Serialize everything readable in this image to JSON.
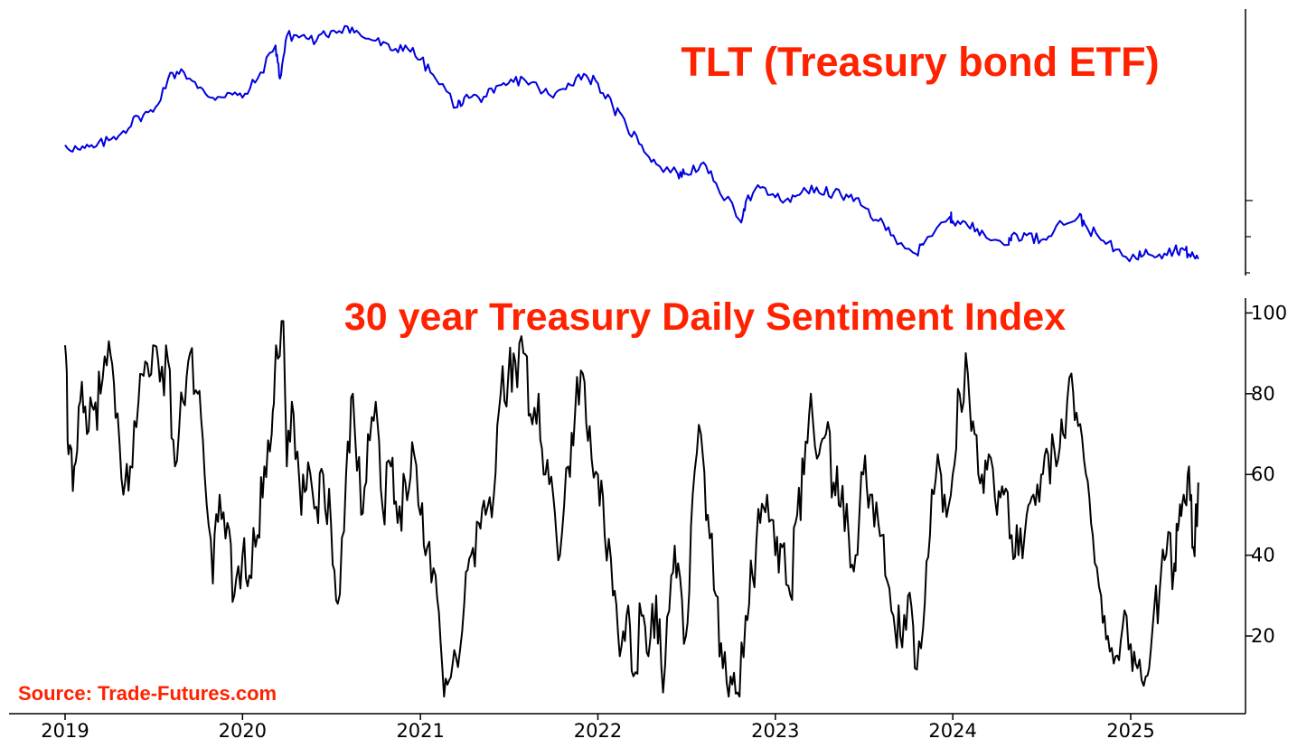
{
  "colors": {
    "title": "#ff2200",
    "tlt_line": "#0000dd",
    "dsi_line": "#000000",
    "axis": "#000000",
    "background": "#ffffff"
  },
  "chart_data": [
    {
      "type": "line",
      "title": "TLT (Treasury bond ETF)",
      "grid": false,
      "x_range": [
        "2019-01-01",
        "2025-05-31"
      ],
      "y_scale": "relative price (no tick labels shown)",
      "series": [
        {
          "color": "#0000dd",
          "x": [
            "2019-01-01",
            "2019-02-01",
            "2019-03-01",
            "2019-04-01",
            "2019-05-01",
            "2019-06-01",
            "2019-07-01",
            "2019-08-01",
            "2019-08-28",
            "2019-10-01",
            "2019-11-01",
            "2019-12-01",
            "2020-01-01",
            "2020-02-01",
            "2020-03-09",
            "2020-03-18",
            "2020-04-01",
            "2020-05-01",
            "2020-06-01",
            "2020-07-01",
            "2020-08-04",
            "2020-09-01",
            "2020-10-01",
            "2020-11-01",
            "2020-12-01",
            "2021-01-01",
            "2021-02-01",
            "2021-03-18",
            "2021-04-01",
            "2021-05-01",
            "2021-06-01",
            "2021-07-01",
            "2021-08-01",
            "2021-09-01",
            "2021-10-01",
            "2021-11-01",
            "2021-12-03",
            "2022-01-01",
            "2022-02-01",
            "2022-03-01",
            "2022-04-01",
            "2022-05-01",
            "2022-06-14",
            "2022-07-01",
            "2022-08-01",
            "2022-09-01",
            "2022-10-21",
            "2022-11-01",
            "2022-12-01",
            "2023-01-01",
            "2023-02-01",
            "2023-03-01",
            "2023-04-01",
            "2023-05-01",
            "2023-06-01",
            "2023-07-01",
            "2023-08-01",
            "2023-09-01",
            "2023-10-19",
            "2023-11-01",
            "2023-12-27",
            "2024-01-01",
            "2024-02-01",
            "2024-03-01",
            "2024-04-25",
            "2024-05-01",
            "2024-06-01",
            "2024-07-01",
            "2024-08-01",
            "2024-09-16",
            "2024-10-01",
            "2024-11-01",
            "2024-12-01",
            "2025-01-13",
            "2025-02-01",
            "2025-03-01",
            "2025-04-01",
            "2025-04-20",
            "2025-05-01",
            "2025-05-20"
          ],
          "values": [
            100,
            99,
            99.5,
            101,
            103,
            106,
            107,
            114,
            116,
            112,
            110,
            111,
            110,
            114,
            121,
            114,
            123,
            123,
            122,
            124,
            125,
            123,
            122,
            120,
            121,
            118,
            114,
            108,
            110,
            110,
            111,
            113,
            114,
            112,
            110,
            113,
            115,
            113,
            108,
            104,
            100,
            96,
            94,
            94,
            96,
            92,
            84,
            88,
            91,
            89,
            88,
            91,
            90,
            90,
            89,
            87,
            84,
            81,
            77,
            79,
            85,
            84,
            83,
            82,
            79,
            81,
            81,
            80,
            83,
            85,
            83,
            80,
            78,
            76,
            78,
            77,
            78,
            78,
            77,
            76
          ]
        }
      ]
    },
    {
      "type": "line",
      "title": "30 year Treasury Daily Sentiment Index",
      "grid": false,
      "x_range": [
        "2019-01-01",
        "2025-05-31"
      ],
      "xticks": [
        "2019",
        "2020",
        "2021",
        "2022",
        "2023",
        "2024",
        "2025"
      ],
      "yticks": [
        "20",
        "40",
        "60",
        "80",
        "100"
      ],
      "ylim": [
        3,
        103
      ],
      "series": [
        {
          "color": "#000000",
          "x": [
            "2019-01-01",
            "2019-01-08",
            "2019-01-20",
            "2019-02-01",
            "2019-02-15",
            "2019-03-01",
            "2019-03-15",
            "2019-04-01",
            "2019-04-15",
            "2019-05-01",
            "2019-05-15",
            "2019-06-01",
            "2019-06-15",
            "2019-07-01",
            "2019-07-15",
            "2019-08-01",
            "2019-08-15",
            "2019-09-01",
            "2019-09-15",
            "2019-10-01",
            "2019-10-15",
            "2019-11-01",
            "2019-11-15",
            "2019-12-01",
            "2019-12-15",
            "2020-01-01",
            "2020-01-15",
            "2020-02-01",
            "2020-02-15",
            "2020-03-01",
            "2020-03-10",
            "2020-03-25",
            "2020-04-01",
            "2020-04-15",
            "2020-05-01",
            "2020-05-15",
            "2020-06-01",
            "2020-06-15",
            "2020-07-01",
            "2020-07-15",
            "2020-08-01",
            "2020-08-15",
            "2020-09-01",
            "2020-09-15",
            "2020-10-01",
            "2020-10-15",
            "2020-11-01",
            "2020-11-15",
            "2020-12-01",
            "2020-12-15",
            "2021-01-01",
            "2021-01-15",
            "2021-02-01",
            "2021-02-15",
            "2021-03-01",
            "2021-03-15",
            "2021-04-01",
            "2021-04-15",
            "2021-05-01",
            "2021-05-15",
            "2021-06-01",
            "2021-06-15",
            "2021-07-01",
            "2021-07-15",
            "2021-08-01",
            "2021-08-15",
            "2021-09-01",
            "2021-09-15",
            "2021-10-01",
            "2021-10-15",
            "2021-11-01",
            "2021-11-15",
            "2021-12-01",
            "2021-12-15",
            "2022-01-01",
            "2022-01-15",
            "2022-02-01",
            "2022-02-15",
            "2022-03-01",
            "2022-03-15",
            "2022-04-01",
            "2022-04-15",
            "2022-05-01",
            "2022-05-15",
            "2022-06-01",
            "2022-06-15",
            "2022-07-01",
            "2022-07-15",
            "2022-08-01",
            "2022-08-15",
            "2022-09-01",
            "2022-09-15",
            "2022-10-01",
            "2022-10-15",
            "2022-11-01",
            "2022-11-15",
            "2022-12-01",
            "2022-12-15",
            "2023-01-01",
            "2023-01-15",
            "2023-02-01",
            "2023-02-15",
            "2023-03-01",
            "2023-03-15",
            "2023-04-01",
            "2023-04-15",
            "2023-05-01",
            "2023-05-15",
            "2023-06-01",
            "2023-06-15",
            "2023-07-01",
            "2023-07-15",
            "2023-08-01",
            "2023-08-15",
            "2023-09-01",
            "2023-09-15",
            "2023-10-01",
            "2023-10-15",
            "2023-11-01",
            "2023-11-15",
            "2023-12-01",
            "2023-12-15",
            "2024-01-01",
            "2024-01-15",
            "2024-02-01",
            "2024-02-15",
            "2024-03-01",
            "2024-03-15",
            "2024-04-01",
            "2024-04-15",
            "2024-05-01",
            "2024-05-15",
            "2024-06-01",
            "2024-06-15",
            "2024-07-01",
            "2024-07-15",
            "2024-08-01",
            "2024-08-15",
            "2024-09-01",
            "2024-09-15",
            "2024-10-01",
            "2024-10-15",
            "2024-11-01",
            "2024-11-15",
            "2024-12-01",
            "2024-12-15",
            "2025-01-01",
            "2025-01-15",
            "2025-02-01",
            "2025-02-15",
            "2025-03-01",
            "2025-03-15",
            "2025-04-01",
            "2025-04-10",
            "2025-04-20",
            "2025-05-01",
            "2025-05-10",
            "2025-05-20"
          ],
          "values": [
            92,
            65,
            62,
            78,
            70,
            76,
            80,
            93,
            74,
            55,
            62,
            78,
            88,
            92,
            83,
            88,
            62,
            78,
            90,
            80,
            60,
            33,
            55,
            48,
            30,
            40,
            35,
            45,
            62,
            70,
            92,
            98,
            62,
            75,
            50,
            63,
            52,
            60,
            48,
            28,
            60,
            80,
            50,
            70,
            78,
            52,
            62,
            48,
            58,
            68,
            50,
            42,
            35,
            12,
            9,
            15,
            28,
            40,
            48,
            50,
            55,
            80,
            85,
            88,
            90,
            75,
            80,
            60,
            55,
            40,
            62,
            75,
            85,
            72,
            60,
            45,
            30,
            15,
            25,
            10,
            25,
            15,
            30,
            6,
            35,
            38,
            20,
            55,
            70,
            50,
            30,
            12,
            10,
            6,
            25,
            35,
            48,
            55,
            40,
            42,
            30,
            50,
            60,
            80,
            65,
            70,
            58,
            52,
            45,
            40,
            60,
            55,
            48,
            35,
            25,
            20,
            30,
            12,
            22,
            45,
            65,
            55,
            60,
            80,
            85,
            70,
            60,
            65,
            50,
            55,
            45,
            40,
            50,
            55,
            60,
            65,
            62,
            70,
            85,
            72,
            60,
            45,
            30,
            20,
            15,
            22,
            18,
            12,
            10,
            22,
            30,
            40,
            38,
            48,
            55,
            62,
            42,
            58
          ],
          "note_on_values": "approximate readings"
        }
      ]
    }
  ],
  "footer": {
    "source_label": "Source: Trade-Futures.com"
  }
}
